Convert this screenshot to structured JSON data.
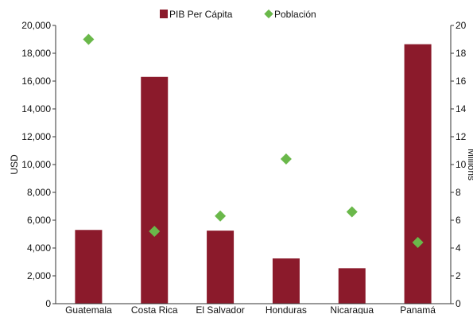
{
  "chart_data": {
    "type": "bar",
    "categories": [
      "Guatemala",
      "Costa Rica",
      "El Salvador",
      "Honduras",
      "Nicaragua",
      "Panamá"
    ],
    "series": [
      {
        "name": "PIB Per Cápita",
        "type": "bar",
        "axis": "left",
        "color": "#8b1a2b",
        "values": [
          5300,
          16300,
          5250,
          3250,
          2550,
          18650
        ]
      },
      {
        "name": "Población",
        "type": "scatter",
        "marker": "diamond",
        "axis": "right",
        "color": "#6ab84a",
        "values": [
          19.0,
          5.2,
          6.3,
          10.4,
          6.6,
          4.4
        ]
      }
    ],
    "ylabel": "USD",
    "y2label": "Millions",
    "ylim": [
      0,
      20000
    ],
    "y2lim": [
      0,
      20
    ],
    "yticks": [
      "0",
      "2,000",
      "4,000",
      "6,000",
      "8,000",
      "10,000",
      "12,000",
      "14,000",
      "16,000",
      "18,000",
      "20,000"
    ],
    "y2ticks": [
      "0",
      "2",
      "4",
      "6",
      "8",
      "10",
      "12",
      "14",
      "16",
      "18",
      "20"
    ],
    "legend_position": "top-center",
    "grid": false
  }
}
